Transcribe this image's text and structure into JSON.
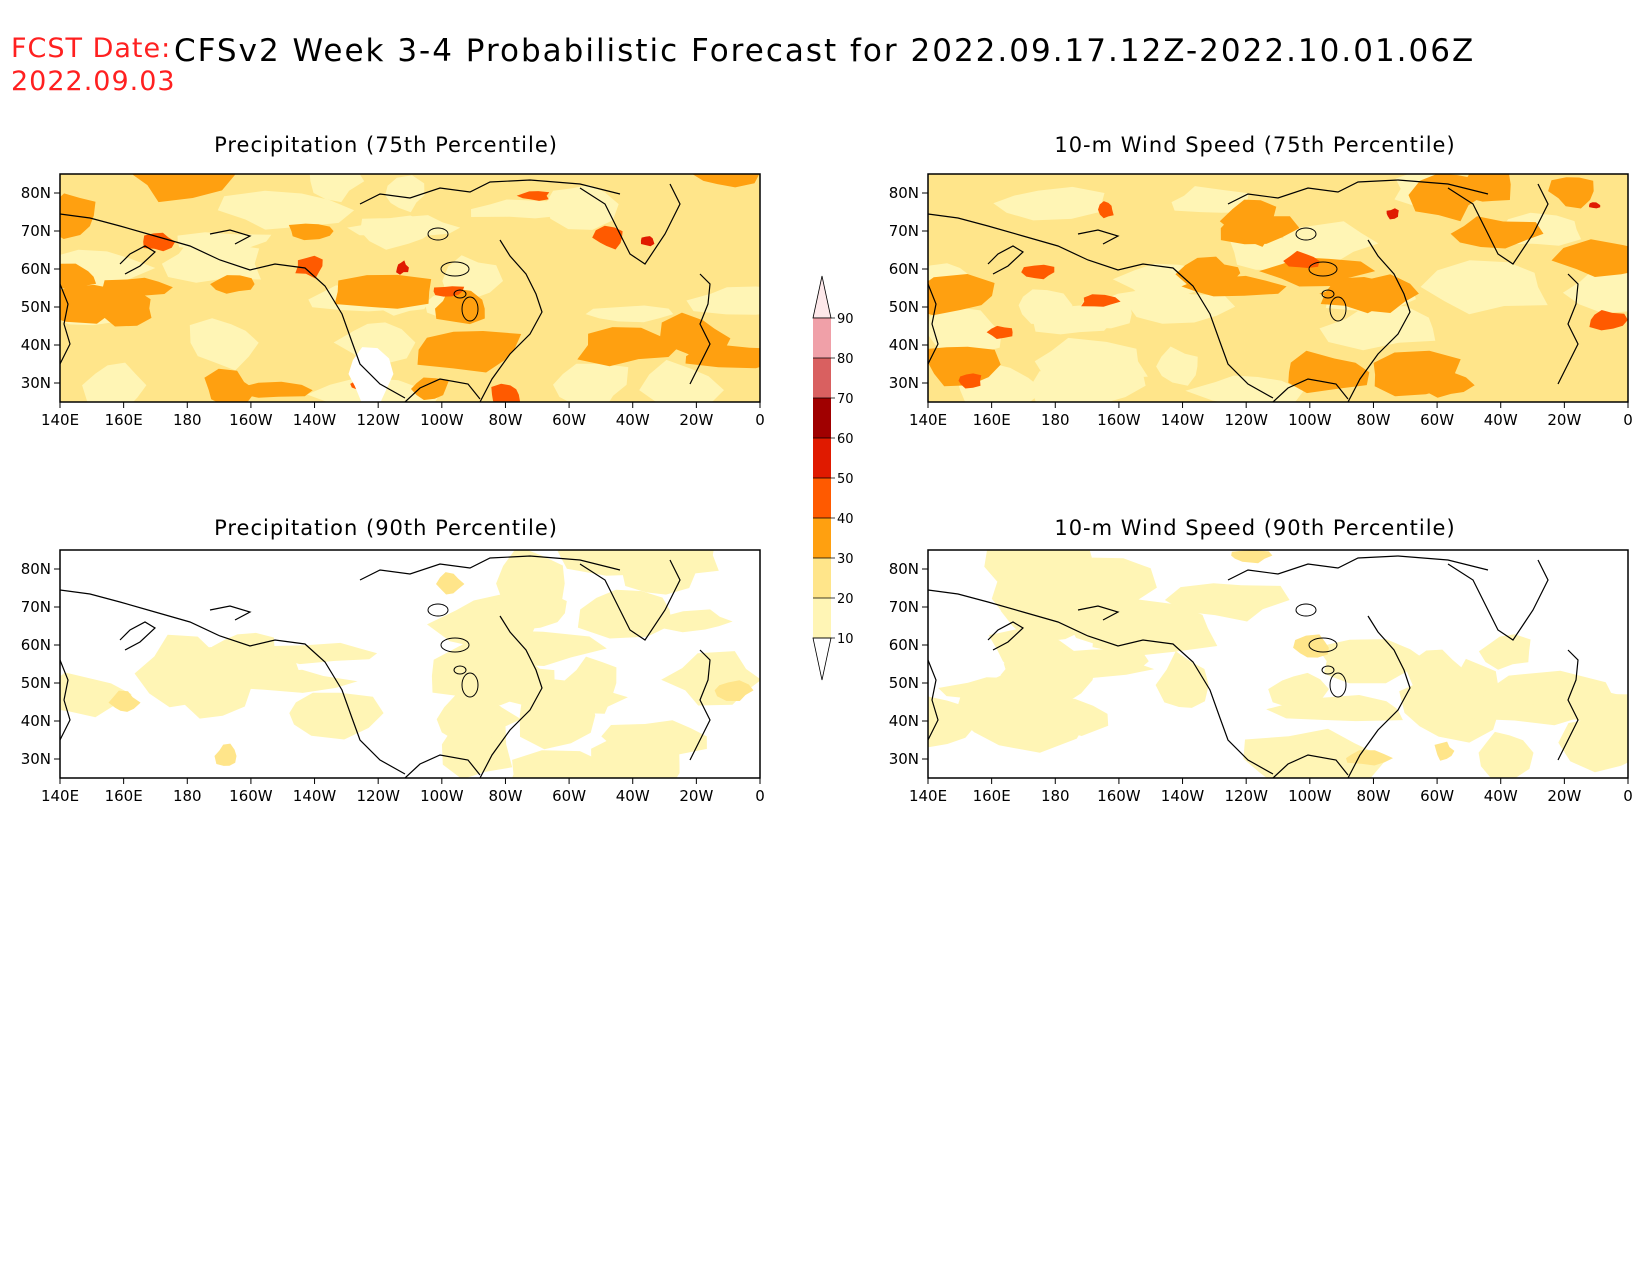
{
  "header": {
    "fcst_label": "FCST Date:",
    "fcst_date": "2022.09.03",
    "title": "CFSv2 Week 3-4 Probabilistic Forecast for 2022.09.17.12Z-2022.10.01.06Z"
  },
  "axes": {
    "lon_ticks": [
      "140E",
      "160E",
      "180",
      "160W",
      "140W",
      "120W",
      "100W",
      "80W",
      "60W",
      "40W",
      "20W",
      "0"
    ],
    "lat_ticks": [
      "80N",
      "70N",
      "60N",
      "50N",
      "40N",
      "30N"
    ]
  },
  "panels": [
    {
      "id": "precip-75",
      "title": "Precipitation (75th Percentile)",
      "level": "high"
    },
    {
      "id": "wind-75",
      "title": "10-m Wind Speed (75th Percentile)",
      "level": "high"
    },
    {
      "id": "precip-90",
      "title": "Precipitation (90th Percentile)",
      "level": "low"
    },
    {
      "id": "wind-90",
      "title": "10-m Wind Speed (90th Percentile)",
      "level": "low"
    }
  ],
  "colorbar": {
    "levels": [
      "90",
      "80",
      "70",
      "60",
      "50",
      "40",
      "30",
      "20",
      "10"
    ],
    "colors": {
      "10-20": "#fff5b5",
      "20-30": "#ffe58a",
      "30-40": "#ffa010",
      "40-50": "#ff5a00",
      "50-60": "#e01a00",
      "60-70": "#a00000",
      "70-80": "#d96060",
      "80-90": "#f0a0a8",
      "90-100": "#fde8ea"
    }
  }
}
